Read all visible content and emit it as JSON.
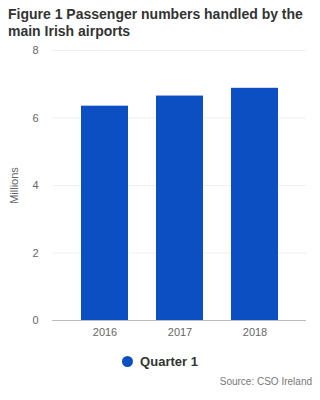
{
  "chart_data": {
    "type": "bar",
    "title": "Figure 1 Passenger numbers handled by the main Irish airports",
    "y_label": "Millions",
    "categories": [
      "2016",
      "2017",
      "2018"
    ],
    "series": [
      {
        "name": "Quarter 1",
        "color": "#0b4fc2",
        "values": [
          6.35,
          6.65,
          6.88
        ]
      }
    ],
    "ylim": [
      0,
      8
    ],
    "yticks": [
      0,
      2,
      4,
      6,
      8
    ],
    "grid": true,
    "legend": "bottom",
    "caption": "Source: CSO Ireland"
  }
}
